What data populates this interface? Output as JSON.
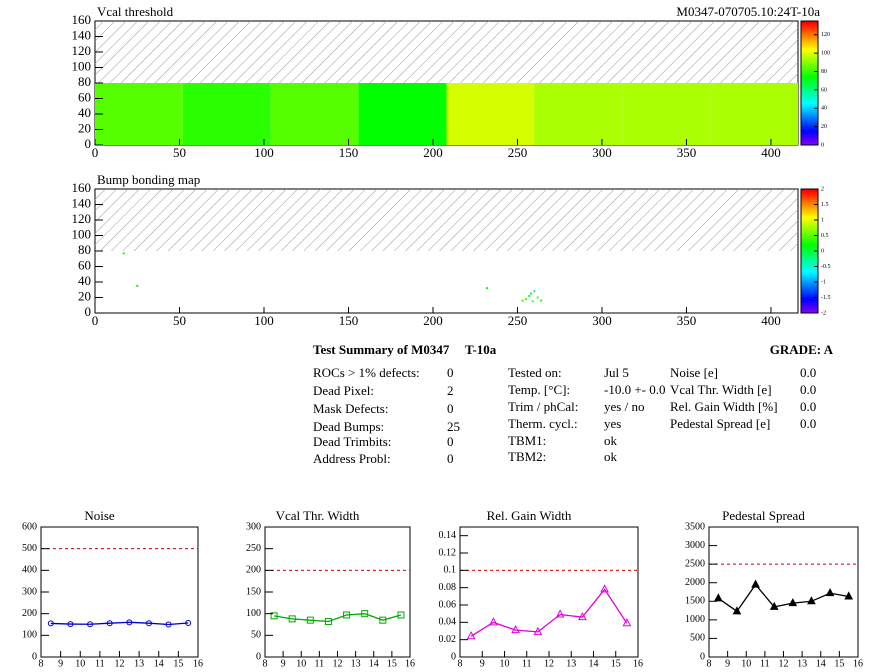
{
  "chart_data": [
    {
      "type": "heatmap",
      "title": "Vcal threshold",
      "subtitle": "M0347-070705.10:24T-10a",
      "xbins": [
        0,
        52,
        104,
        156,
        208,
        260,
        312,
        364,
        416
      ],
      "ybins": [
        0,
        80
      ],
      "values": [
        85,
        80,
        85,
        75,
        100,
        95,
        95,
        95
      ],
      "xlim": [
        0,
        416
      ],
      "ylim": [
        0,
        160
      ],
      "xticks": [
        0,
        50,
        100,
        150,
        200,
        250,
        300,
        350,
        400
      ],
      "yticks": [
        0,
        20,
        40,
        60,
        80,
        100,
        120,
        140,
        160
      ],
      "zlim": [
        0,
        135
      ],
      "zticks": [
        0,
        20,
        40,
        60,
        80,
        100,
        120
      ],
      "hatch_above": 80
    },
    {
      "type": "scatter",
      "title": "Bump bonding map",
      "x": [
        17,
        25,
        232,
        253,
        255,
        257,
        258,
        259,
        260,
        262,
        264
      ],
      "y": [
        77,
        35,
        32,
        16,
        18,
        22,
        25,
        15,
        28,
        20,
        16
      ],
      "z": [
        0.3,
        0.2,
        0.2,
        0.4,
        0.5,
        0,
        0,
        0.5,
        -0.3,
        0.4,
        0.3
      ],
      "xlim": [
        0,
        416
      ],
      "ylim": [
        0,
        160
      ],
      "xticks": [
        0,
        50,
        100,
        150,
        200,
        250,
        300,
        350,
        400
      ],
      "yticks": [
        0,
        20,
        40,
        60,
        80,
        100,
        120,
        140,
        160
      ],
      "zlim": [
        -2,
        2
      ],
      "zticks": [
        -2,
        -1.5,
        -1,
        -0.5,
        0,
        0.5,
        1,
        1.5,
        2
      ],
      "hatch_above": 80
    },
    {
      "type": "line",
      "title": "Noise",
      "color": "#0000cc",
      "marker": "circle",
      "x": [
        8.5,
        9.5,
        10.5,
        11.5,
        12.5,
        13.5,
        14.5,
        15.5
      ],
      "values": [
        155,
        152,
        151,
        156,
        160,
        156,
        150,
        157
      ],
      "reference": 500,
      "xlim": [
        8,
        16
      ],
      "ylim": [
        0,
        600
      ],
      "xticks": [
        8,
        9,
        10,
        11,
        12,
        13,
        14,
        15,
        16
      ],
      "yticks": [
        0,
        100,
        200,
        300,
        400,
        500,
        600
      ]
    },
    {
      "type": "line",
      "title": "Vcal Thr. Width",
      "color": "#00aa00",
      "marker": "square",
      "x": [
        8.5,
        9.5,
        10.5,
        11.5,
        12.5,
        13.5,
        14.5,
        15.5
      ],
      "values": [
        95,
        88,
        85,
        82,
        97,
        100,
        85,
        97
      ],
      "reference": 200,
      "xlim": [
        8,
        16
      ],
      "ylim": [
        0,
        300
      ],
      "xticks": [
        8,
        9,
        10,
        11,
        12,
        13,
        14,
        15,
        16
      ],
      "yticks": [
        0,
        50,
        100,
        150,
        200,
        250,
        300
      ]
    },
    {
      "type": "line",
      "title": "Rel. Gain Width",
      "color": "#dd00dd",
      "marker": "triangle",
      "x": [
        8.5,
        9.5,
        10.5,
        11.5,
        12.5,
        13.5,
        14.5,
        15.5
      ],
      "values": [
        0.024,
        0.04,
        0.031,
        0.029,
        0.049,
        0.046,
        0.078,
        0.039
      ],
      "reference": 0.1,
      "xlim": [
        8,
        16
      ],
      "ylim": [
        0,
        0.15
      ],
      "xticks": [
        8,
        9,
        10,
        11,
        12,
        13,
        14,
        15,
        16
      ],
      "yticks": [
        0,
        0.02,
        0.04,
        0.06,
        0.08,
        0.1,
        0.12,
        0.14
      ]
    },
    {
      "type": "line",
      "title": "Pedestal Spread",
      "color": "#000000",
      "marker": "filled-triangle",
      "x": [
        8.5,
        9.5,
        10.5,
        11.5,
        12.5,
        13.5,
        14.5,
        15.5
      ],
      "values": [
        1580,
        1230,
        1950,
        1350,
        1450,
        1500,
        1720,
        1630
      ],
      "reference": 2500,
      "xlim": [
        8,
        16
      ],
      "ylim": [
        0,
        3500
      ],
      "xticks": [
        8,
        9,
        10,
        11,
        12,
        13,
        14,
        15,
        16
      ],
      "yticks": [
        0,
        500,
        1000,
        1500,
        2000,
        2500,
        3000,
        3500
      ]
    }
  ],
  "summary": {
    "title": "Test Summary of M0347",
    "test": "T-10a",
    "grade": "GRADE:  A",
    "col1": [
      [
        "ROCs > 1% defects:",
        "0"
      ],
      [
        "Dead Pixel:",
        "2"
      ],
      [
        "Mask Defects:",
        "0"
      ],
      [
        "Dead Bumps:",
        "25"
      ],
      [
        "Dead Trimbits:",
        "0"
      ],
      [
        "Address Probl:",
        "0"
      ]
    ],
    "col2": [
      [
        "Tested on:",
        "Jul 5"
      ],
      [
        "Temp. [°C]:",
        "-10.0 +- 0.0"
      ],
      [
        "Trim / phCal:",
        "yes / no"
      ],
      [
        "Therm. cycl.:",
        "yes"
      ],
      [
        "TBM1:",
        "ok"
      ],
      [
        "TBM2:",
        "ok"
      ]
    ],
    "col3": [
      [
        "Noise [e]",
        "0.0"
      ],
      [
        "Vcal Thr. Width [e]",
        "0.0"
      ],
      [
        "Rel. Gain Width [%]",
        "0.0"
      ],
      [
        "Pedestal Spread [e]",
        "0.0"
      ]
    ]
  }
}
